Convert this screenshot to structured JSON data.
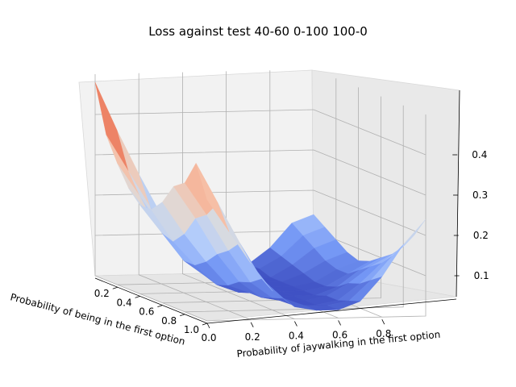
{
  "chart_data": {
    "type": "surface",
    "title": "Loss against test 40-60 0-100 100-0",
    "xlabel": "Probability of being in the first option",
    "ylabel": "Probability of jaywalking in the first option",
    "zlabel": "",
    "x": [
      0.0,
      0.1,
      0.2,
      0.3,
      0.4,
      0.5,
      0.6,
      0.7,
      0.8,
      0.9,
      1.0
    ],
    "y": [
      0.0,
      0.1,
      0.2,
      0.3,
      0.4,
      0.5,
      0.6,
      0.7,
      0.8,
      0.9,
      1.0
    ],
    "x_ticks": [
      "0.2",
      "0.4",
      "0.6",
      "0.8",
      "1.0"
    ],
    "y_ticks": [
      "0.0",
      "0.2",
      "0.4",
      "0.6",
      "0.8"
    ],
    "z_ticks": [
      "0.1",
      "0.2",
      "0.3",
      "0.4"
    ],
    "xlim": [
      0,
      1
    ],
    "ylim": [
      0,
      1
    ],
    "zlim": [
      0.0,
      0.5
    ],
    "z": [
      [
        0.48,
        0.36,
        0.25,
        0.15,
        0.07,
        0.02,
        0.01,
        0.02,
        0.06,
        0.12,
        0.14
      ],
      [
        0.36,
        0.27,
        0.18,
        0.1,
        0.05,
        0.02,
        0.01,
        0.02,
        0.05,
        0.1,
        0.12
      ],
      [
        0.3,
        0.22,
        0.14,
        0.08,
        0.03,
        0.01,
        0.01,
        0.01,
        0.04,
        0.08,
        0.1
      ],
      [
        0.25,
        0.18,
        0.11,
        0.05,
        0.02,
        0.01,
        0.01,
        0.01,
        0.03,
        0.06,
        0.08
      ],
      [
        0.22,
        0.15,
        0.08,
        0.04,
        0.01,
        0.01,
        0.01,
        0.01,
        0.02,
        0.05,
        0.07
      ],
      [
        0.22,
        0.14,
        0.08,
        0.03,
        0.01,
        0.01,
        0.01,
        0.01,
        0.02,
        0.05,
        0.08
      ],
      [
        0.25,
        0.17,
        0.1,
        0.04,
        0.02,
        0.01,
        0.01,
        0.01,
        0.03,
        0.07,
        0.1
      ],
      [
        0.3,
        0.22,
        0.13,
        0.06,
        0.02,
        0.01,
        0.01,
        0.02,
        0.05,
        0.09,
        0.12
      ],
      [
        0.32,
        0.24,
        0.15,
        0.07,
        0.03,
        0.01,
        0.01,
        0.02,
        0.06,
        0.11,
        0.15
      ],
      [
        0.38,
        0.28,
        0.18,
        0.09,
        0.04,
        0.02,
        0.02,
        0.03,
        0.08,
        0.14,
        0.19
      ],
      [
        0.3,
        0.22,
        0.14,
        0.07,
        0.03,
        0.02,
        0.02,
        0.04,
        0.1,
        0.18,
        0.24
      ]
    ],
    "colormap": "coolwarm",
    "colormap_stops": [
      "#3b4cc0",
      "#7396f5",
      "#b0cbfc",
      "#dddcdc",
      "#f6bfa6",
      "#ed8366",
      "#b40426"
    ],
    "grid": true,
    "legend": "none"
  }
}
